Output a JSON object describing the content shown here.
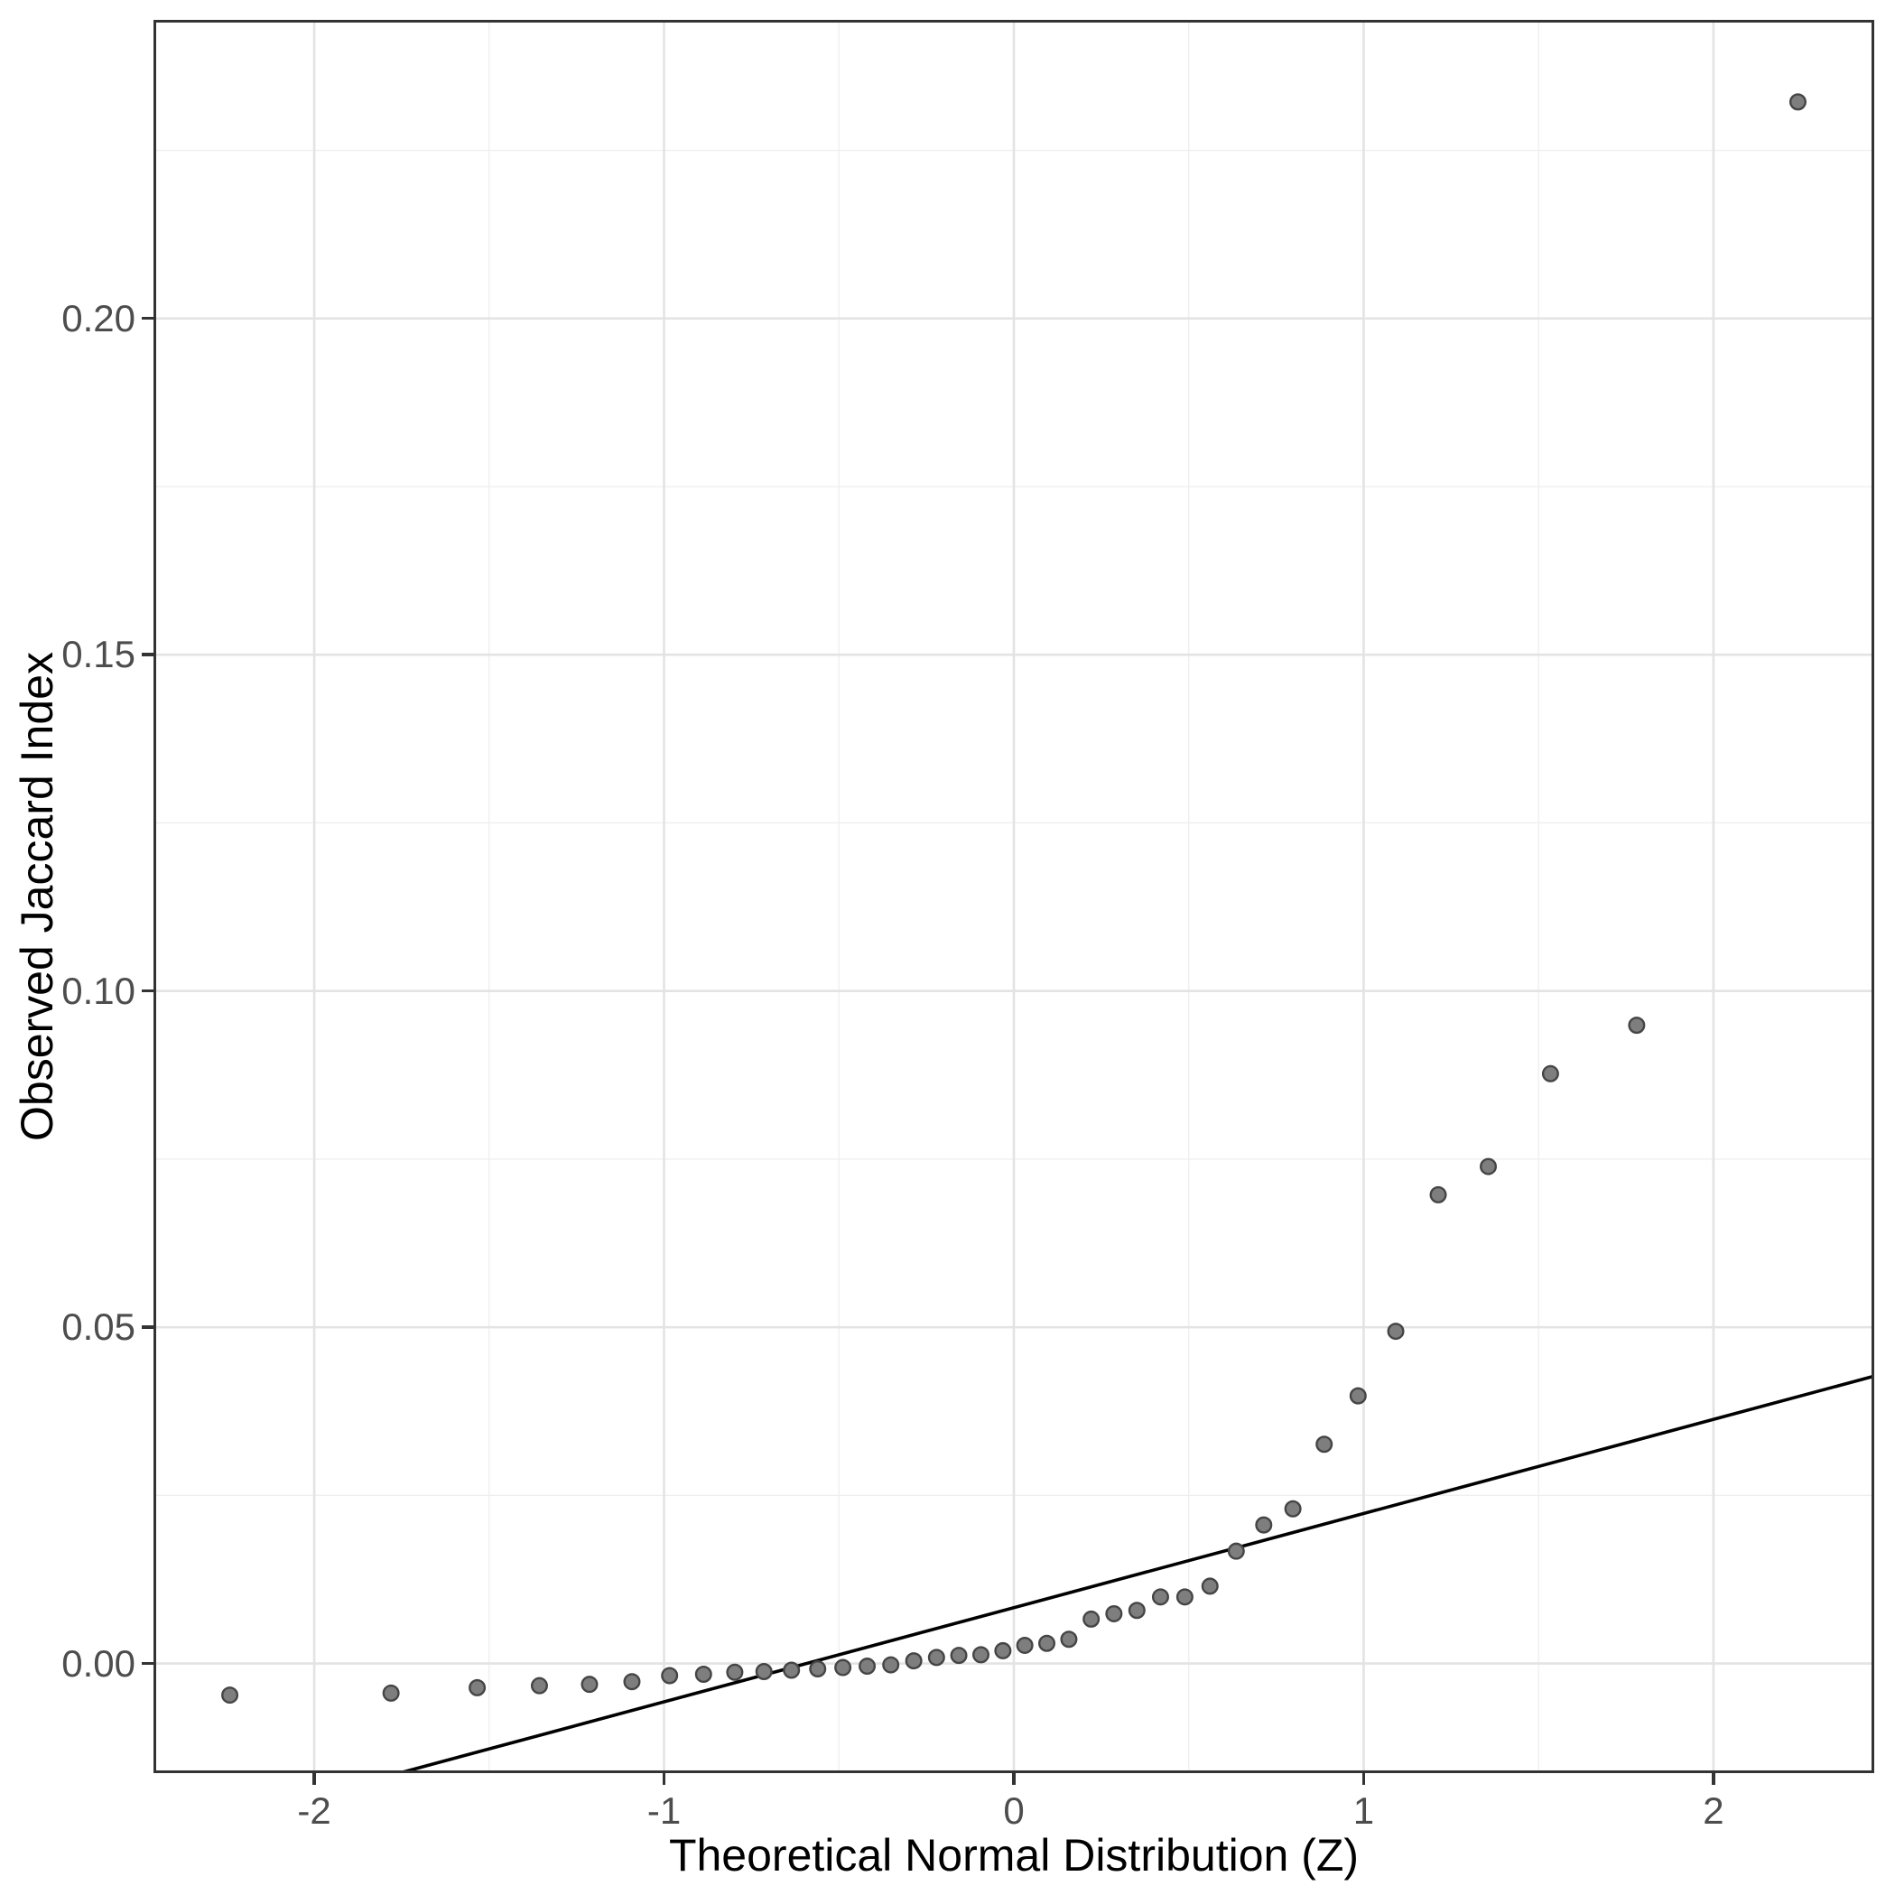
{
  "chart_data": {
    "type": "scatter",
    "title": "",
    "xlabel": "Theoretical Normal Distribution (Z)",
    "ylabel": "Observed Jaccard Index",
    "xlim": [
      -2.4596,
      2.4596
    ],
    "ylim": [
      -0.0163,
      0.2444
    ],
    "x_ticks": [
      -2,
      -1,
      0,
      1,
      2
    ],
    "x_tick_labels": [
      "-2",
      "-1",
      "0",
      "1",
      "2"
    ],
    "x_minor_ticks": [
      -1.5,
      -0.5,
      0.5,
      1.5
    ],
    "y_ticks": [
      0,
      0.05,
      0.1,
      0.15,
      0.2
    ],
    "y_tick_labels": [
      "0.00",
      "0.05",
      "0.10",
      "0.15",
      "0.20"
    ],
    "y_minor_ticks": [
      0.025,
      0.075,
      0.125,
      0.175,
      0.225
    ],
    "grid": "major+minor",
    "legend_position": "none",
    "x": [
      -2.2414,
      -1.7805,
      -1.5341,
      -1.3563,
      -1.2131,
      -1.0918,
      -0.9841,
      -0.8871,
      -0.7978,
      -0.7144,
      -0.6357,
      -0.5607,
      -0.4888,
      -0.4193,
      -0.3518,
      -0.2861,
      -0.2211,
      -0.1573,
      -0.0942,
      -0.0313,
      0.0313,
      0.0942,
      0.1573,
      0.2211,
      0.2861,
      0.3518,
      0.4193,
      0.4888,
      0.5607,
      0.6357,
      0.7144,
      0.7978,
      0.8871,
      0.9841,
      1.0918,
      1.2131,
      1.3563,
      1.5341,
      1.7805,
      2.2414
    ],
    "y": [
      -0.0047,
      -0.0044,
      -0.0036,
      -0.0033,
      -0.0031,
      -0.0027,
      -0.0018,
      -0.0016,
      -0.0013,
      -0.0012,
      -0.001,
      -0.0008,
      -0.0006,
      -0.0004,
      -0.0002,
      0.0004,
      0.0009,
      0.0012,
      0.0013,
      0.0019,
      0.0027,
      0.003,
      0.0036,
      0.0066,
      0.0074,
      0.0079,
      0.0099,
      0.0099,
      0.0115,
      0.0167,
      0.0206,
      0.023,
      0.0326,
      0.0398,
      0.0494,
      0.0697,
      0.0739,
      0.0877,
      0.0949,
      0.2322
    ],
    "qq_line": {
      "intercept": 0.0083,
      "slope": 0.014
    },
    "colors": {
      "point_fill": "#7e7e7e",
      "point_stroke": "#454545",
      "line": "#000000",
      "grid_major": "#e3e3e3",
      "grid_minor": "#efefef",
      "panel_border": "#333333",
      "tick_mark": "#333333",
      "tick_text": "#4d4d4d",
      "title_text": "#000000",
      "background": "#ffffff"
    }
  }
}
